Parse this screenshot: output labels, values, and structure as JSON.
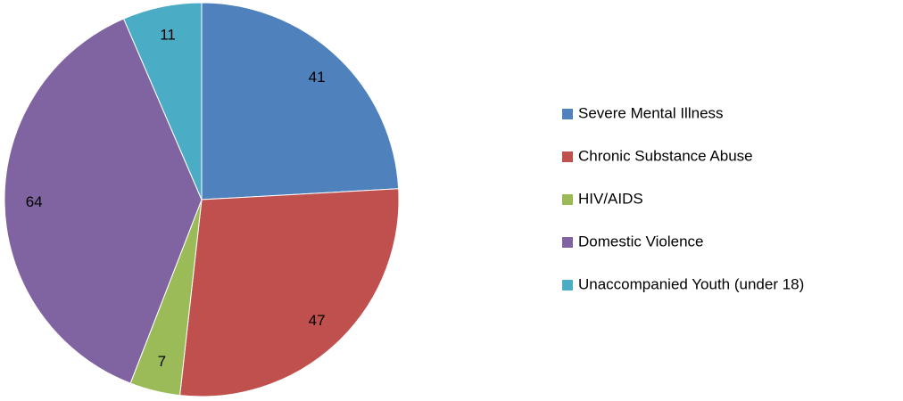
{
  "chart_data": {
    "type": "pie",
    "categories": [
      "Severe Mental Illness",
      "Chronic Substance Abuse",
      "HIV/AIDS",
      "Domestic Violence",
      "Unaccompanied Youth (under 18)"
    ],
    "values": [
      41,
      47,
      7,
      64,
      11
    ],
    "colors": [
      "#4f81bd",
      "#c0504d",
      "#9bbb59",
      "#8064a2",
      "#4bacc6"
    ],
    "legend": "right"
  }
}
